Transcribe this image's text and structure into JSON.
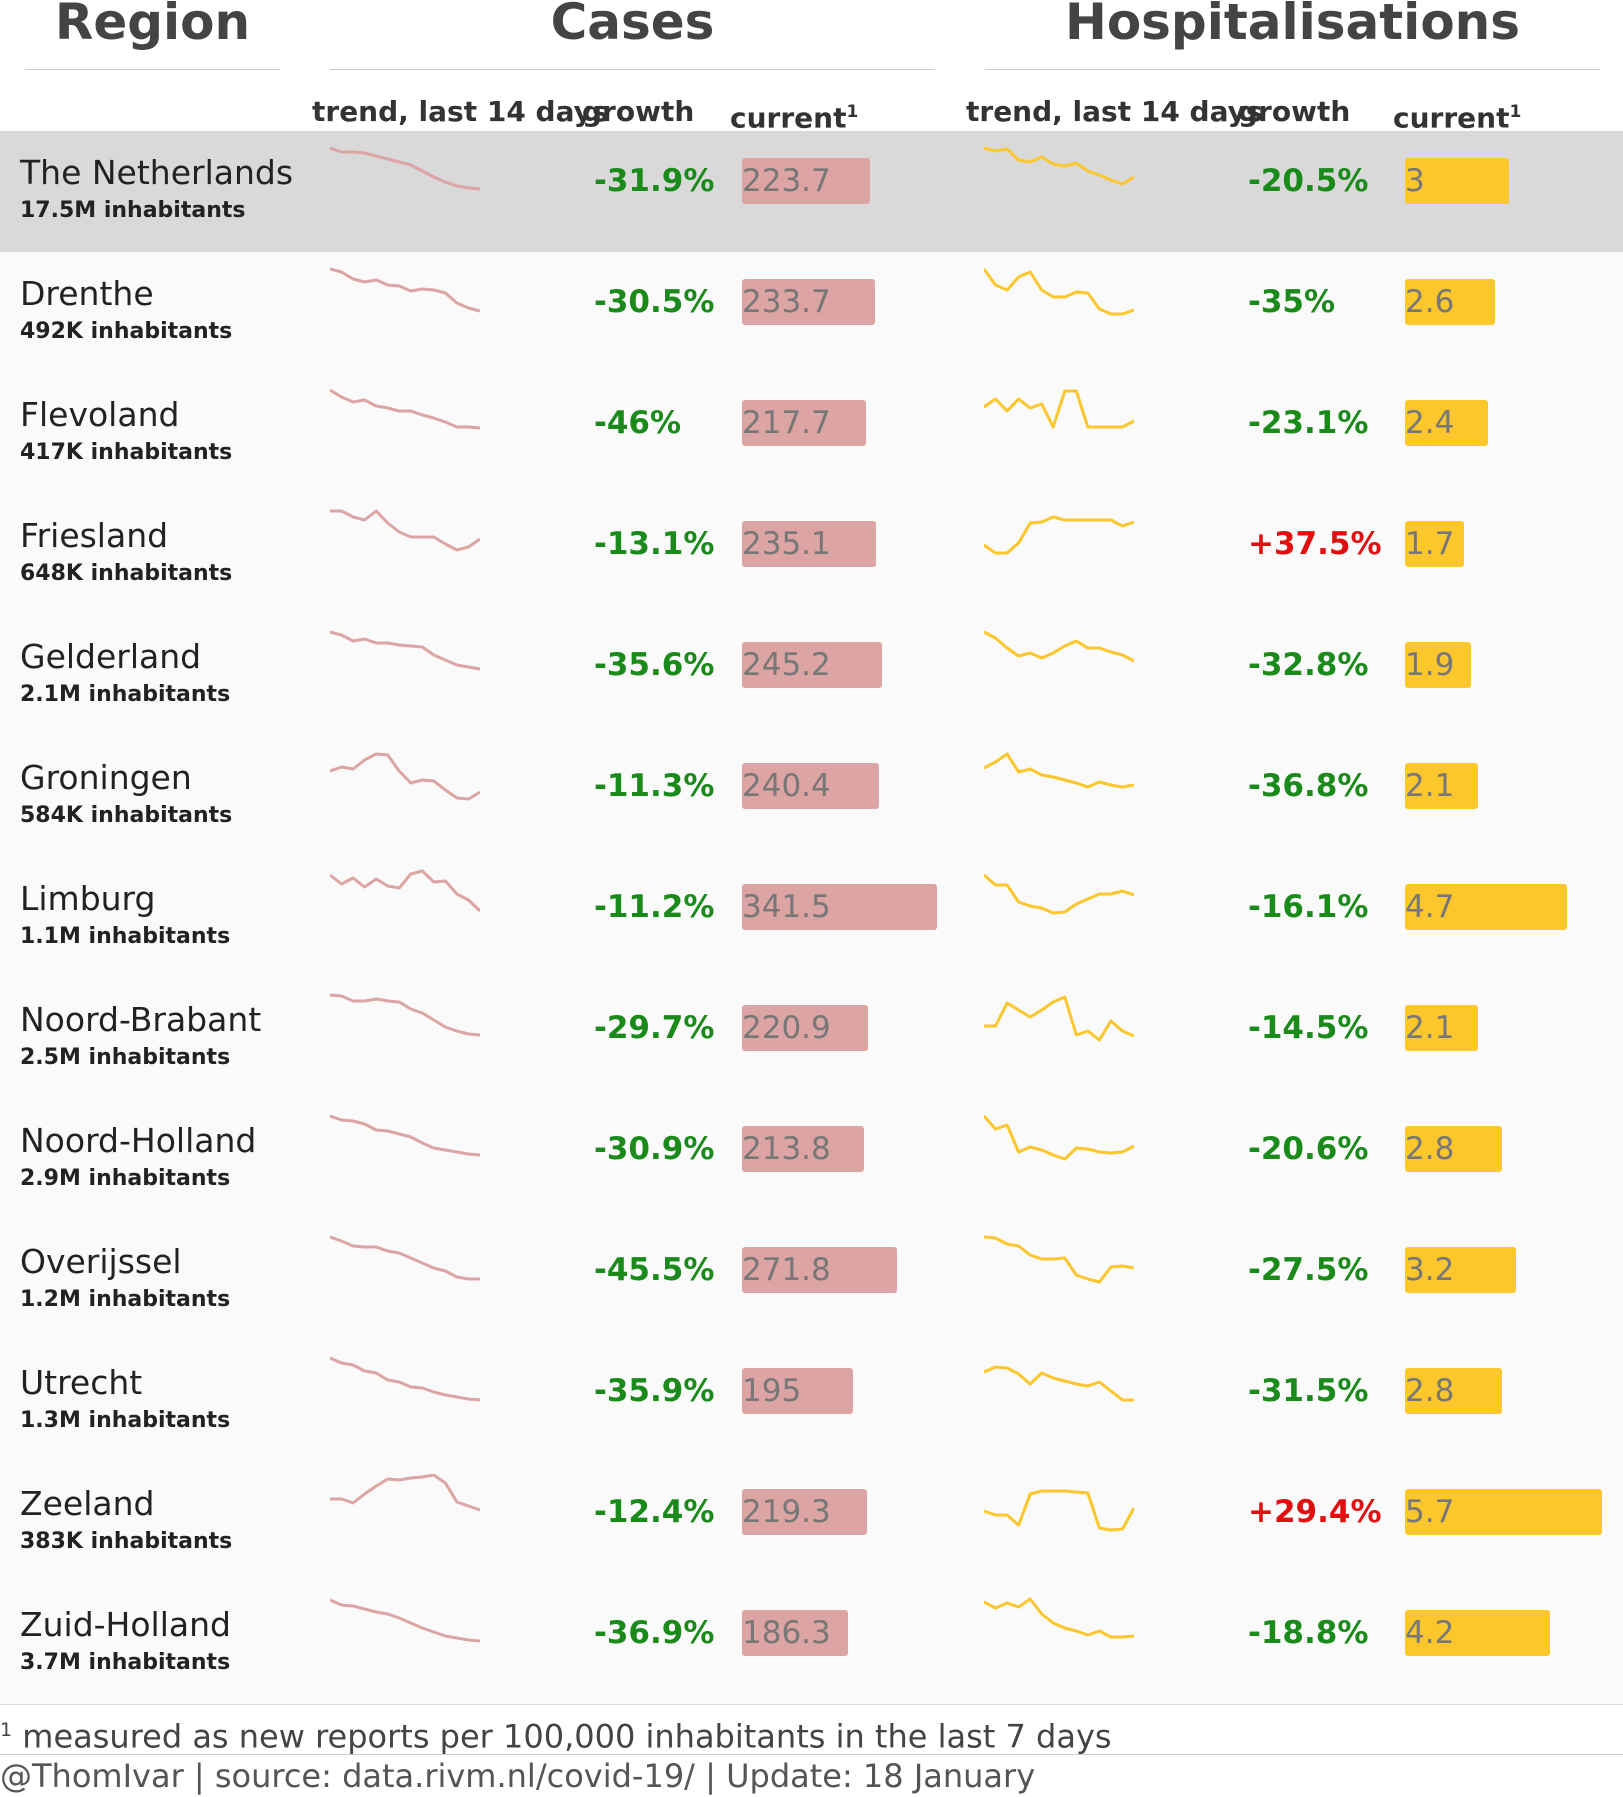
{
  "groups": {
    "region": "Region",
    "cases": "Cases",
    "hospitalisations": "Hospitalisations"
  },
  "columns": {
    "cases_trend": "trend, last 14 days",
    "cases_growth": "growth",
    "cases_current": "current",
    "hosp_trend": "trend, last 14 days",
    "hosp_growth": "growth",
    "hosp_current": "current",
    "footnote_marker": "1"
  },
  "colors": {
    "cases": "#dda4a4",
    "hospitalisations": "#fcc62d",
    "negative_growth": "#1a8a1a",
    "positive_growth": "#e01010",
    "highlight_row": "#d9d9d9"
  },
  "chart_data": {
    "type": "table",
    "bar_max": {
      "cases": 341.5,
      "hospitalisations": 5.7
    },
    "rows": [
      {
        "name": "The Netherlands",
        "population": "17.5M inhabitants",
        "highlight": true,
        "cases": {
          "growth": "-31.9%",
          "current": 223.7,
          "trend": [
            100,
            96,
            96,
            95,
            92,
            89,
            86,
            83,
            77,
            71,
            66,
            62,
            60,
            59
          ]
        },
        "hosp": {
          "growth": "-20.5%",
          "current": 3,
          "trend": [
            100,
            97,
            99,
            88,
            86,
            91,
            84,
            82,
            85,
            77,
            73,
            68,
            64,
            71
          ]
        }
      },
      {
        "name": "Drenthe",
        "population": "492K inhabitants",
        "cases": {
          "growth": "-30.5%",
          "current": 233.7,
          "trend": [
            100,
            97,
            90,
            87,
            89,
            84,
            83,
            78,
            80,
            79,
            76,
            66,
            61,
            58
          ]
        },
        "hosp": {
          "growth": "-35%",
          "current": 2.6,
          "trend": [
            100,
            84,
            79,
            92,
            97,
            79,
            72,
            72,
            77,
            76,
            60,
            55,
            55,
            59
          ]
        }
      },
      {
        "name": "Flevoland",
        "population": "417K inhabitants",
        "cases": {
          "growth": "-46%",
          "current": 217.7,
          "trend": [
            100,
            93,
            88,
            90,
            84,
            82,
            79,
            79,
            75,
            72,
            68,
            63,
            63,
            62
          ]
        },
        "hosp": {
          "growth": "-23.1%",
          "current": 2.4,
          "trend": [
            83,
            91,
            79,
            91,
            82,
            86,
            63,
            99,
            99,
            63,
            63,
            63,
            63,
            69
          ]
        }
      },
      {
        "name": "Friesland",
        "population": "648K inhabitants",
        "cases": {
          "growth": "-13.1%",
          "current": 235.1,
          "trend": [
            100,
            100,
            94,
            91,
            100,
            88,
            79,
            74,
            74,
            74,
            67,
            61,
            64,
            72
          ]
        },
        "hosp": {
          "growth": "+37.5%",
          "current": 1.7,
          "trend": [
            66,
            58,
            58,
            68,
            88,
            89,
            94,
            91,
            91,
            91,
            91,
            91,
            85,
            89
          ]
        }
      },
      {
        "name": "Gelderland",
        "population": "2.1M inhabitants",
        "cases": {
          "growth": "-35.6%",
          "current": 245.2,
          "trend": [
            100,
            97,
            91,
            93,
            89,
            89,
            87,
            86,
            85,
            77,
            72,
            67,
            65,
            63
          ]
        },
        "hosp": {
          "growth": "-32.8%",
          "current": 1.9,
          "trend": [
            100,
            94,
            84,
            76,
            79,
            74,
            79,
            86,
            91,
            84,
            84,
            80,
            77,
            71
          ]
        }
      },
      {
        "name": "Groningen",
        "population": "584K inhabitants",
        "cases": {
          "growth": "-11.3%",
          "current": 240.4,
          "trend": [
            82,
            86,
            84,
            93,
            99,
            98,
            82,
            70,
            73,
            72,
            63,
            55,
            54,
            61
          ]
        },
        "hosp": {
          "growth": "-36.8%",
          "current": 2.1,
          "trend": [
            85,
            91,
            99,
            81,
            84,
            78,
            76,
            73,
            70,
            66,
            71,
            68,
            66,
            68
          ]
        }
      },
      {
        "name": "Limburg",
        "population": "1.1M inhabitants",
        "cases": {
          "growth": "-11.2%",
          "current": 341.5,
          "trend": [
            99,
            90,
            96,
            87,
            95,
            88,
            86,
            100,
            103,
            92,
            93,
            80,
            74,
            63
          ]
        },
        "hosp": {
          "growth": "-16.1%",
          "current": 4.7,
          "trend": [
            99,
            89,
            89,
            72,
            68,
            66,
            61,
            62,
            70,
            75,
            80,
            80,
            83,
            79
          ]
        }
      },
      {
        "name": "Noord-Brabant",
        "population": "2.5M inhabitants",
        "cases": {
          "growth": "-29.7%",
          "current": 220.9,
          "trend": [
            100,
            99,
            94,
            94,
            96,
            94,
            93,
            86,
            82,
            75,
            68,
            64,
            61,
            60
          ]
        },
        "hosp": {
          "growth": "-14.5%",
          "current": 2.1,
          "trend": [
            69,
            69,
            92,
            85,
            78,
            85,
            93,
            98,
            60,
            64,
            55,
            74,
            64,
            59
          ]
        }
      },
      {
        "name": "Noord-Holland",
        "population": "2.9M inhabitants",
        "cases": {
          "growth": "-30.9%",
          "current": 213.8,
          "trend": [
            100,
            96,
            95,
            92,
            86,
            85,
            82,
            79,
            73,
            68,
            66,
            64,
            62,
            61
          ]
        },
        "hosp": {
          "growth": "-20.6%",
          "current": 2.8,
          "trend": [
            100,
            87,
            91,
            64,
            69,
            66,
            61,
            57,
            68,
            67,
            64,
            63,
            64,
            70
          ]
        }
      },
      {
        "name": "Overijssel",
        "population": "1.2M inhabitants",
        "cases": {
          "growth": "-45.5%",
          "current": 271.8,
          "trend": [
            100,
            96,
            91,
            90,
            90,
            86,
            84,
            79,
            74,
            69,
            66,
            60,
            58,
            58
          ]
        },
        "hosp": {
          "growth": "-27.5%",
          "current": 3.2,
          "trend": [
            100,
            99,
            93,
            91,
            82,
            78,
            78,
            79,
            62,
            58,
            55,
            70,
            71,
            69
          ]
        }
      },
      {
        "name": "Utrecht",
        "population": "1.3M inhabitants",
        "cases": {
          "growth": "-35.9%",
          "current": 195,
          "trend": [
            100,
            95,
            93,
            87,
            85,
            78,
            76,
            71,
            70,
            66,
            63,
            61,
            59,
            58
          ]
        },
        "hosp": {
          "growth": "-31.5%",
          "current": 2.8,
          "trend": [
            86,
            91,
            90,
            84,
            74,
            85,
            80,
            77,
            74,
            72,
            76,
            67,
            58,
            58
          ]
        }
      },
      {
        "name": "Zeeland",
        "population": "383K inhabitants",
        "cases": {
          "growth": "-12.4%",
          "current": 219.3,
          "trend": [
            80,
            80,
            76,
            85,
            93,
            100,
            99,
            101,
            102,
            104,
            96,
            77,
            73,
            69
          ]
        },
        "hosp": {
          "growth": "+29.4%",
          "current": 5.7,
          "trend": [
            68,
            64,
            64,
            54,
            85,
            88,
            88,
            88,
            87,
            86,
            51,
            49,
            50,
            71
          ]
        }
      },
      {
        "name": "Zuid-Holland",
        "population": "3.7M inhabitants",
        "cases": {
          "growth": "-36.9%",
          "current": 186.3,
          "trend": [
            100,
            95,
            94,
            91,
            88,
            86,
            82,
            77,
            72,
            68,
            64,
            62,
            60,
            59
          ]
        },
        "hosp": {
          "growth": "-18.8%",
          "current": 4.2,
          "trend": [
            98,
            92,
            97,
            93,
            101,
            86,
            77,
            72,
            69,
            65,
            69,
            63,
            63,
            64
          ]
        }
      }
    ]
  },
  "footer": {
    "footnote_marker": "1",
    "footnote": "measured as new reports per 100,000 inhabitants in the last 7 days",
    "source": "@ThomIvar | source: data.rivm.nl/covid-19/ | Update: 18 January"
  }
}
